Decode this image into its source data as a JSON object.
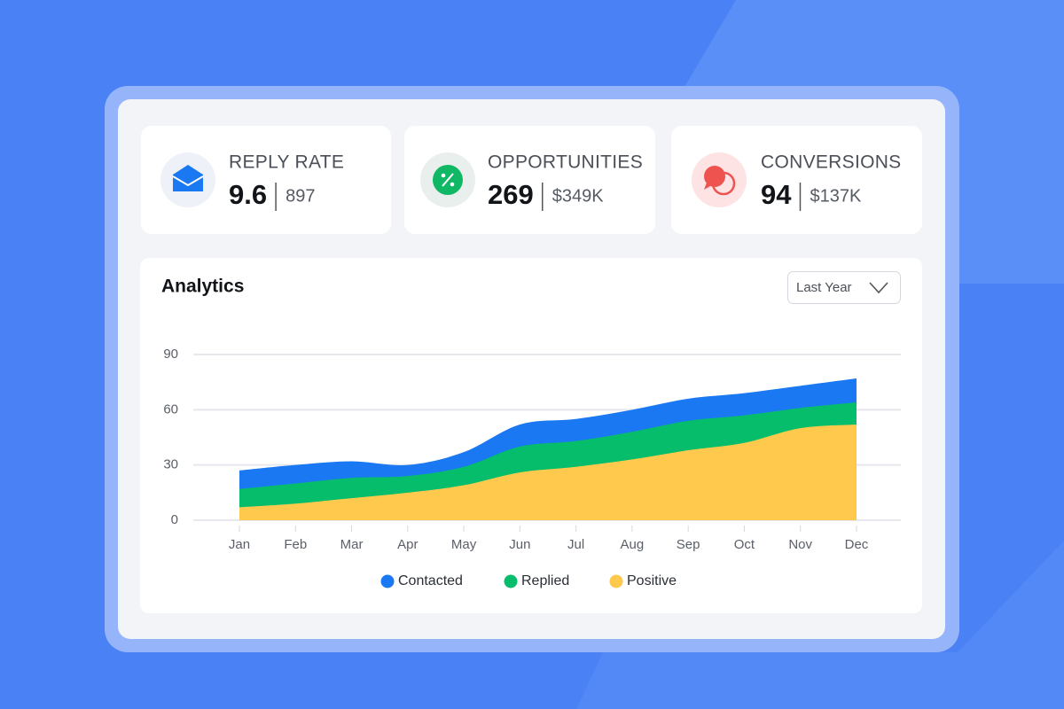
{
  "cards": [
    {
      "title": "REPLY RATE",
      "value": "9.6",
      "sub": "897"
    },
    {
      "title": "OPPORTUNITIES",
      "value": "269",
      "sub": "$349K"
    },
    {
      "title": "CONVERSIONS",
      "value": "94",
      "sub": "$137K"
    }
  ],
  "panel": {
    "title": "Analytics",
    "dropdown": "Last Year"
  },
  "chart_data": {
    "type": "stacked-area",
    "categories": [
      "Jan",
      "Feb",
      "Mar",
      "Apr",
      "May",
      "Jun",
      "Jul",
      "Aug",
      "Sep",
      "Oct",
      "Nov",
      "Dec"
    ],
    "series": [
      {
        "name": "Contacted",
        "color": "#1a78f2",
        "values": [
          10,
          10,
          9,
          6,
          8,
          12,
          12,
          12,
          12,
          12,
          12,
          13
        ]
      },
      {
        "name": "Replied",
        "color": "#05bd6a",
        "values": [
          10,
          11,
          11,
          9,
          10,
          14,
          14,
          15,
          16,
          15,
          11,
          12
        ]
      },
      {
        "name": "Positive",
        "color": "#ffc94d",
        "values": [
          7,
          9,
          12,
          15,
          19,
          26,
          29,
          33,
          38,
          42,
          50,
          52
        ]
      }
    ],
    "ylim": [
      0,
      90
    ],
    "yticks": [
      0,
      30,
      60,
      90
    ],
    "grid": true
  }
}
